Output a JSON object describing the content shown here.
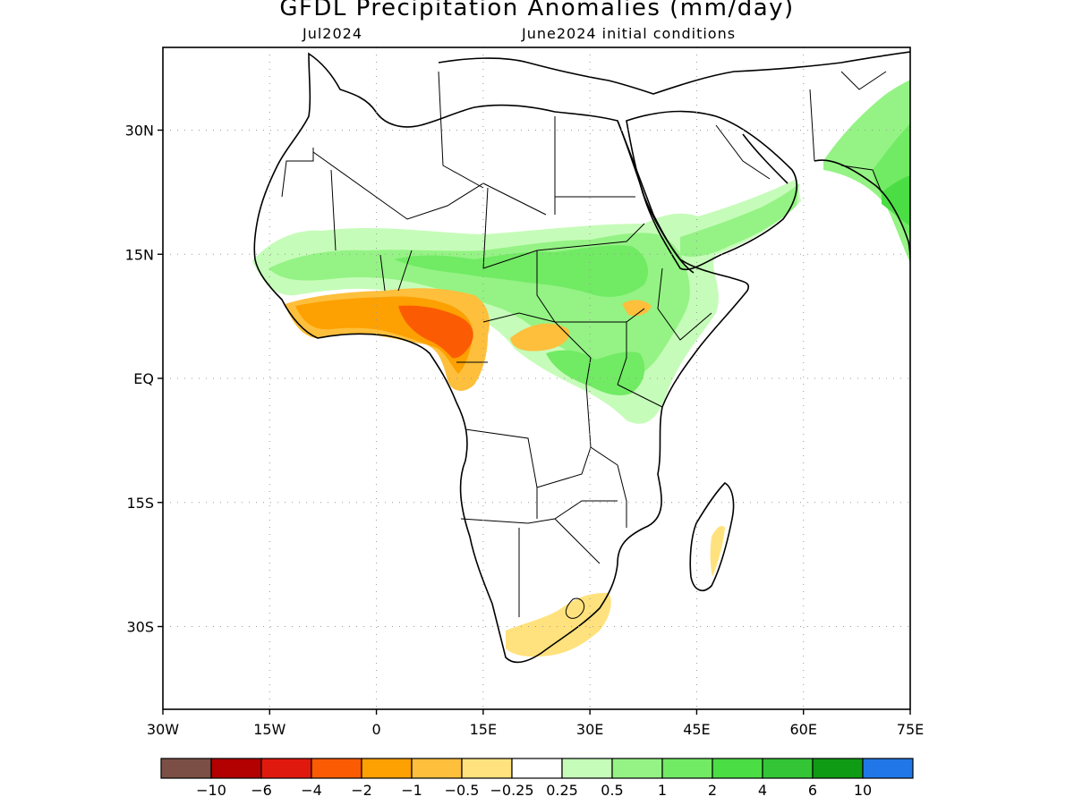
{
  "title": "GFDL Precipitation Anomalies (mm/day)",
  "subtitle_left": "Jul2024",
  "subtitle_right": "June2024 initial conditions",
  "map": {
    "lon_range": [
      -30,
      75
    ],
    "lat_range": [
      -40,
      40
    ],
    "x_ticks": [
      {
        "lon": -30,
        "label": "30W"
      },
      {
        "lon": -15,
        "label": "15W"
      },
      {
        "lon": 0,
        "label": "0"
      },
      {
        "lon": 15,
        "label": "15E"
      },
      {
        "lon": 30,
        "label": "30E"
      },
      {
        "lon": 45,
        "label": "45E"
      },
      {
        "lon": 60,
        "label": "60E"
      },
      {
        "lon": 75,
        "label": "75E"
      }
    ],
    "y_ticks": [
      {
        "lat": 30,
        "label": "30N"
      },
      {
        "lat": 15,
        "label": "15N"
      },
      {
        "lat": 0,
        "label": "EQ"
      },
      {
        "lat": -15,
        "label": "15S"
      },
      {
        "lat": -30,
        "label": "30S"
      }
    ],
    "grid": "dotted"
  },
  "colorbar": {
    "colors": [
      "#7b4f45",
      "#b30000",
      "#e0190f",
      "#fb5c03",
      "#fda001",
      "#fdbf3c",
      "#ffe27d",
      "#ffffff",
      "#c6fcb9",
      "#94f384",
      "#71ea64",
      "#4bdd44",
      "#33c536",
      "#109b14",
      "#2177e8"
    ],
    "labels": [
      "−10",
      "−6",
      "−4",
      "−2",
      "−1",
      "−0.5",
      "−0.25",
      "0.25",
      "0.5",
      "1",
      "2",
      "4",
      "6",
      "10"
    ]
  }
}
